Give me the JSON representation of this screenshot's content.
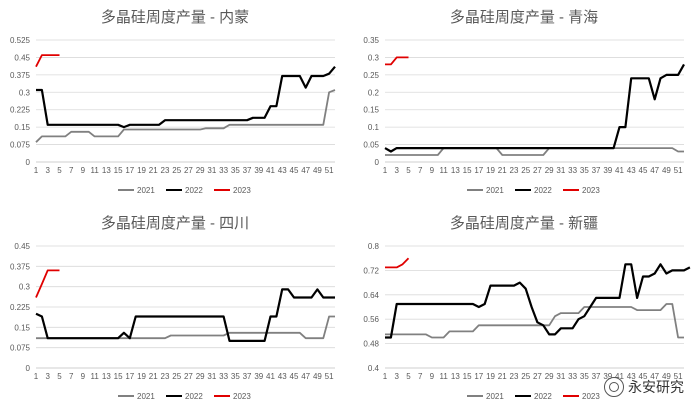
{
  "chart_data": [
    {
      "type": "line",
      "title": "多晶硅周度产量 - 内蒙",
      "ylim": [
        0,
        0.525
      ],
      "yticks": [
        "0",
        "0.075",
        "0.15",
        "0.225",
        "0.3",
        "0.375",
        "0.45",
        "0.525"
      ],
      "xticks": [
        "1",
        "3",
        "5",
        "7",
        "9",
        "11",
        "13",
        "15",
        "17",
        "19",
        "21",
        "23",
        "25",
        "27",
        "29",
        "31",
        "33",
        "35",
        "37",
        "39",
        "41",
        "43",
        "45",
        "47",
        "49",
        "51"
      ],
      "legend": "bottom",
      "series": [
        {
          "name": "2021",
          "color": "#808080",
          "values": [
            0.085,
            0.11,
            0.11,
            0.11,
            0.11,
            0.11,
            0.13,
            0.13,
            0.13,
            0.13,
            0.11,
            0.11,
            0.11,
            0.11,
            0.11,
            0.14,
            0.14,
            0.14,
            0.14,
            0.14,
            0.14,
            0.14,
            0.14,
            0.14,
            0.14,
            0.14,
            0.14,
            0.14,
            0.14,
            0.145,
            0.145,
            0.145,
            0.145,
            0.16,
            0.16,
            0.16,
            0.16,
            0.16,
            0.16,
            0.16,
            0.16,
            0.16,
            0.16,
            0.16,
            0.16,
            0.16,
            0.16,
            0.16,
            0.16,
            0.16,
            0.3,
            0.31
          ]
        },
        {
          "name": "2022",
          "color": "#000000",
          "values": [
            0.31,
            0.31,
            0.16,
            0.16,
            0.16,
            0.16,
            0.16,
            0.16,
            0.16,
            0.16,
            0.16,
            0.16,
            0.16,
            0.16,
            0.16,
            0.15,
            0.16,
            0.16,
            0.16,
            0.16,
            0.16,
            0.16,
            0.18,
            0.18,
            0.18,
            0.18,
            0.18,
            0.18,
            0.18,
            0.18,
            0.18,
            0.18,
            0.18,
            0.18,
            0.18,
            0.18,
            0.18,
            0.19,
            0.19,
            0.19,
            0.24,
            0.24,
            0.37,
            0.37,
            0.37,
            0.37,
            0.32,
            0.37,
            0.37,
            0.37,
            0.38,
            0.41
          ]
        },
        {
          "name": "2023",
          "color": "#e00000",
          "values": [
            0.41,
            0.46,
            0.46,
            0.46,
            0.46
          ]
        }
      ]
    },
    {
      "type": "line",
      "title": "多晶硅周度产量 - 青海",
      "ylim": [
        0,
        0.35
      ],
      "yticks": [
        "0",
        "0.05",
        "0.1",
        "0.15",
        "0.2",
        "0.25",
        "0.3",
        "0.35"
      ],
      "xticks": [
        "1",
        "3",
        "5",
        "7",
        "9",
        "11",
        "13",
        "15",
        "17",
        "19",
        "21",
        "23",
        "25",
        "27",
        "29",
        "31",
        "33",
        "35",
        "37",
        "39",
        "41",
        "43",
        "45",
        "47",
        "49",
        "51"
      ],
      "legend": "bottom",
      "series": [
        {
          "name": "2021",
          "color": "#808080",
          "values": [
            0.02,
            0.02,
            0.02,
            0.02,
            0.02,
            0.02,
            0.02,
            0.02,
            0.02,
            0.02,
            0.04,
            0.04,
            0.04,
            0.04,
            0.04,
            0.04,
            0.04,
            0.04,
            0.04,
            0.04,
            0.02,
            0.02,
            0.02,
            0.02,
            0.02,
            0.02,
            0.02,
            0.02,
            0.04,
            0.04,
            0.04,
            0.04,
            0.04,
            0.04,
            0.04,
            0.04,
            0.04,
            0.04,
            0.04,
            0.04,
            0.04,
            0.04,
            0.04,
            0.04,
            0.04,
            0.04,
            0.04,
            0.04,
            0.04,
            0.04,
            0.03,
            0.03
          ]
        },
        {
          "name": "2022",
          "color": "#000000",
          "values": [
            0.04,
            0.03,
            0.04,
            0.04,
            0.04,
            0.04,
            0.04,
            0.04,
            0.04,
            0.04,
            0.04,
            0.04,
            0.04,
            0.04,
            0.04,
            0.04,
            0.04,
            0.04,
            0.04,
            0.04,
            0.04,
            0.04,
            0.04,
            0.04,
            0.04,
            0.04,
            0.04,
            0.04,
            0.04,
            0.04,
            0.04,
            0.04,
            0.04,
            0.04,
            0.04,
            0.04,
            0.04,
            0.04,
            0.04,
            0.04,
            0.1,
            0.1,
            0.24,
            0.24,
            0.24,
            0.24,
            0.18,
            0.24,
            0.25,
            0.25,
            0.25,
            0.28
          ]
        },
        {
          "name": "2023",
          "color": "#e00000",
          "values": [
            0.28,
            0.28,
            0.3,
            0.3,
            0.3
          ]
        }
      ]
    },
    {
      "type": "line",
      "title": "多晶硅周度产量 - 四川",
      "ylim": [
        0,
        0.45
      ],
      "yticks": [
        "0",
        "0.075",
        "0.15",
        "0.225",
        "0.3",
        "0.375",
        "0.45"
      ],
      "xticks": [
        "1",
        "3",
        "5",
        "7",
        "9",
        "11",
        "13",
        "15",
        "17",
        "19",
        "21",
        "23",
        "25",
        "27",
        "29",
        "31",
        "33",
        "35",
        "37",
        "39",
        "41",
        "43",
        "45",
        "47",
        "49",
        "51"
      ],
      "legend": "bottom",
      "series": [
        {
          "name": "2021",
          "color": "#808080",
          "values": [
            0.11,
            0.11,
            0.11,
            0.11,
            0.11,
            0.11,
            0.11,
            0.11,
            0.11,
            0.11,
            0.11,
            0.11,
            0.11,
            0.11,
            0.11,
            0.11,
            0.11,
            0.11,
            0.11,
            0.11,
            0.11,
            0.11,
            0.11,
            0.12,
            0.12,
            0.12,
            0.12,
            0.12,
            0.12,
            0.12,
            0.12,
            0.12,
            0.12,
            0.13,
            0.13,
            0.13,
            0.13,
            0.13,
            0.13,
            0.13,
            0.13,
            0.13,
            0.13,
            0.13,
            0.13,
            0.13,
            0.11,
            0.11,
            0.11,
            0.11,
            0.19,
            0.19
          ]
        },
        {
          "name": "2022",
          "color": "#000000",
          "values": [
            0.2,
            0.19,
            0.11,
            0.11,
            0.11,
            0.11,
            0.11,
            0.11,
            0.11,
            0.11,
            0.11,
            0.11,
            0.11,
            0.11,
            0.11,
            0.13,
            0.11,
            0.19,
            0.19,
            0.19,
            0.19,
            0.19,
            0.19,
            0.19,
            0.19,
            0.19,
            0.19,
            0.19,
            0.19,
            0.19,
            0.19,
            0.19,
            0.19,
            0.1,
            0.1,
            0.1,
            0.1,
            0.1,
            0.1,
            0.1,
            0.19,
            0.19,
            0.29,
            0.29,
            0.26,
            0.26,
            0.26,
            0.26,
            0.29,
            0.26,
            0.26,
            0.26
          ]
        },
        {
          "name": "2023",
          "color": "#e00000",
          "values": [
            0.26,
            0.31,
            0.36,
            0.36,
            0.36
          ]
        }
      ]
    },
    {
      "type": "line",
      "title": "多晶硅周度产量 - 新疆",
      "ylim": [
        0.4,
        0.8
      ],
      "yticks": [
        "0.4",
        "0.48",
        "0.56",
        "0.64",
        "0.72",
        "0.8"
      ],
      "xticks": [
        "1",
        "3",
        "5",
        "7",
        "9",
        "11",
        "13",
        "15",
        "17",
        "19",
        "21",
        "23",
        "25",
        "27",
        "29",
        "31",
        "33",
        "35",
        "37",
        "39",
        "41",
        "43",
        "45",
        "47",
        "49",
        "51"
      ],
      "legend": "bottom",
      "series": [
        {
          "name": "2021",
          "color": "#808080",
          "values": [
            0.51,
            0.51,
            0.51,
            0.51,
            0.51,
            0.51,
            0.51,
            0.51,
            0.5,
            0.5,
            0.5,
            0.52,
            0.52,
            0.52,
            0.52,
            0.52,
            0.54,
            0.54,
            0.54,
            0.54,
            0.54,
            0.54,
            0.54,
            0.54,
            0.54,
            0.54,
            0.54,
            0.54,
            0.54,
            0.57,
            0.58,
            0.58,
            0.58,
            0.58,
            0.6,
            0.6,
            0.6,
            0.6,
            0.6,
            0.6,
            0.6,
            0.6,
            0.6,
            0.59,
            0.59,
            0.59,
            0.59,
            0.59,
            0.61,
            0.61,
            0.5,
            0.5
          ]
        },
        {
          "name": "2022",
          "color": "#000000",
          "values": [
            0.5,
            0.5,
            0.61,
            0.61,
            0.61,
            0.61,
            0.61,
            0.61,
            0.61,
            0.61,
            0.61,
            0.61,
            0.61,
            0.61,
            0.61,
            0.61,
            0.6,
            0.61,
            0.67,
            0.67,
            0.67,
            0.67,
            0.67,
            0.68,
            0.66,
            0.6,
            0.55,
            0.54,
            0.51,
            0.51,
            0.53,
            0.53,
            0.53,
            0.56,
            0.57,
            0.6,
            0.63,
            0.63,
            0.63,
            0.63,
            0.63,
            0.74,
            0.74,
            0.63,
            0.7,
            0.7,
            0.71,
            0.74,
            0.71,
            0.72,
            0.72,
            0.72,
            0.73
          ]
        },
        {
          "name": "2023",
          "color": "#e00000",
          "values": [
            0.73,
            0.73,
            0.73,
            0.74,
            0.76
          ]
        }
      ]
    }
  ],
  "watermark": {
    "text": "永安研究",
    "icon": "wechat-logo-icon"
  }
}
